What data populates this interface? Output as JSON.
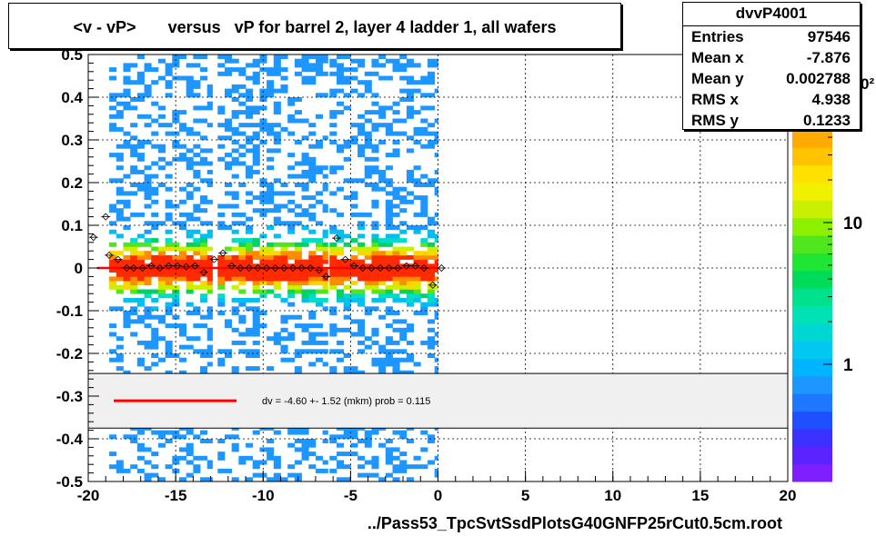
{
  "chart_data": {
    "type": "heatmap",
    "title": "<v - vP>       versus   vP for barrel 2, layer 4 ladder 1, all wafers",
    "xlabel": "../Pass53_TpcSvtSsdPlotsG40GNFP25rCut0.5cm.root",
    "ylabel": "",
    "xlim": [
      -20,
      20
    ],
    "ylim": [
      -0.5,
      0.5
    ],
    "x_ticks": [
      -20,
      -15,
      -10,
      -5,
      0,
      5,
      10,
      15,
      20
    ],
    "x_tick_labels": [
      "-20",
      "-15",
      "-10",
      "-5",
      "0",
      "5",
      "10",
      "15",
      "20"
    ],
    "y_ticks": [
      -0.5,
      -0.4,
      -0.3,
      -0.2,
      -0.1,
      0,
      0.1,
      0.2,
      0.3,
      0.4,
      0.5
    ],
    "y_tick_labels": [
      "-0.5",
      "-0.4",
      "-0.3",
      "-0.2",
      "-0.1",
      "0",
      "0.1",
      "0.2",
      "0.3",
      "0.4",
      "0.5"
    ],
    "grid": true,
    "colorbar": {
      "scale": "log",
      "ticks": [
        1,
        10
      ],
      "tick_labels": [
        "1",
        "10"
      ],
      "top_label_fragment": "0²"
    },
    "stats": {
      "name": "dvvP4001",
      "rows": [
        {
          "label": "Entries",
          "value": "97546"
        },
        {
          "label": "Mean x",
          "value": "-7.876"
        },
        {
          "label": "Mean y",
          "value": "0.002788"
        },
        {
          "label": "RMS x",
          "value": "4.938"
        },
        {
          "label": "RMS y",
          "value": "0.1233"
        }
      ]
    },
    "fit": {
      "text": "dv =   -4.60 +-  1.52 (mkm) prob = 0.115",
      "value_y": 0,
      "x_range": [
        -19.5,
        0
      ]
    },
    "filled_regions": [
      {
        "x": [
          -18.8,
          -12.9
        ],
        "y": [
          -0.5,
          0.5
        ]
      },
      {
        "x": [
          -12.6,
          -6.3
        ],
        "y": [
          -0.5,
          0.5
        ]
      },
      {
        "x": [
          -6.2,
          0
        ],
        "y": [
          -0.5,
          0.5
        ]
      }
    ],
    "profile_points": [
      {
        "x": -19.7,
        "y": 0.072
      },
      {
        "x": -19.0,
        "y": 0.12
      },
      {
        "x": -18.8,
        "y": 0.03
      },
      {
        "x": -18.3,
        "y": 0.02
      },
      {
        "x": -17.8,
        "y": 0.0
      },
      {
        "x": -17.4,
        "y": 0.0
      },
      {
        "x": -16.9,
        "y": 0.0
      },
      {
        "x": -16.4,
        "y": 0.005
      },
      {
        "x": -15.9,
        "y": 0.0
      },
      {
        "x": -15.4,
        "y": 0.005
      },
      {
        "x": -14.9,
        "y": 0.005
      },
      {
        "x": -14.4,
        "y": 0.003
      },
      {
        "x": -13.9,
        "y": 0.005
      },
      {
        "x": -13.4,
        "y": -0.01
      },
      {
        "x": -12.8,
        "y": 0.02
      },
      {
        "x": -12.3,
        "y": 0.035
      },
      {
        "x": -11.8,
        "y": 0.005
      },
      {
        "x": -11.3,
        "y": 0.0
      },
      {
        "x": -10.8,
        "y": 0.0
      },
      {
        "x": -10.3,
        "y": 0.0
      },
      {
        "x": -9.8,
        "y": 0.0
      },
      {
        "x": -9.3,
        "y": 0.0
      },
      {
        "x": -8.8,
        "y": 0.0
      },
      {
        "x": -8.3,
        "y": 0.0
      },
      {
        "x": -7.8,
        "y": 0.0
      },
      {
        "x": -7.3,
        "y": 0.0
      },
      {
        "x": -6.8,
        "y": -0.005
      },
      {
        "x": -6.4,
        "y": -0.02
      },
      {
        "x": -5.8,
        "y": 0.07
      },
      {
        "x": -5.3,
        "y": 0.02
      },
      {
        "x": -4.8,
        "y": 0.005
      },
      {
        "x": -4.3,
        "y": 0.0
      },
      {
        "x": -3.8,
        "y": 0.0
      },
      {
        "x": -3.3,
        "y": 0.0
      },
      {
        "x": -2.8,
        "y": 0.0
      },
      {
        "x": -2.3,
        "y": 0.0
      },
      {
        "x": -1.8,
        "y": 0.005
      },
      {
        "x": -1.3,
        "y": 0.005
      },
      {
        "x": -0.8,
        "y": 0.0
      },
      {
        "x": -0.3,
        "y": -0.04
      },
      {
        "x": 0.2,
        "y": 0.0
      }
    ]
  }
}
